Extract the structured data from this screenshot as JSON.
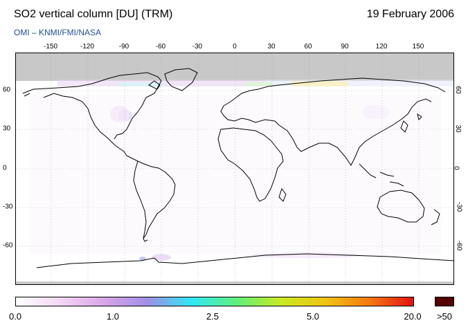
{
  "header": {
    "title": "SO2 vertical column [DU] (TRM)",
    "date": "19 February 2006",
    "subtitle": "OMI  –  KNMI/FMI/NASA"
  },
  "map": {
    "lon_ticks": [
      "-150",
      "-120",
      "-90",
      "-60",
      "-30",
      "0",
      "30",
      "60",
      "90",
      "120",
      "150"
    ],
    "lat_ticks_left": [
      "60",
      "30",
      "0",
      "-30",
      "-60"
    ],
    "lat_ticks_right": [
      "60",
      "30",
      "0",
      "-30",
      "-60"
    ],
    "colors": {
      "no_data": "#c8c8c8",
      "coastline": "#000000",
      "grid": "#a0a0a0"
    }
  },
  "colorbar": {
    "labels": [
      "0.0",
      "1.0",
      "2.5",
      "5.0",
      "20.0",
      ">50"
    ],
    "colors": [
      "#ffffff",
      "#f3d6f3",
      "#d9a4e8",
      "#9f8fe6",
      "#30e8f5",
      "#5ff07a",
      "#c7ea23",
      "#f0c414",
      "#f47a12",
      "#e31212"
    ],
    "over_color": "#550000"
  }
}
